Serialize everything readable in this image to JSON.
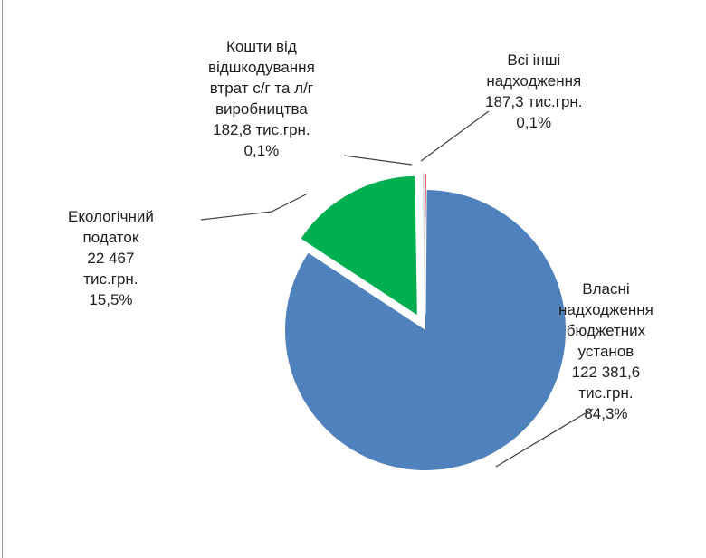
{
  "chart_data": {
    "type": "pie",
    "title": "",
    "slices": [
      {
        "name": "Власні надходження бюджетних установ",
        "value": 122381.6,
        "percent": 84.3,
        "color": "#4f81bd",
        "exploded": false,
        "label_lines": [
          "Власні",
          "надходження",
          "бюджетних",
          "установ",
          "122 381,6",
          "тис.грн.",
          "84,3%"
        ]
      },
      {
        "name": "Екологічний податок",
        "value": 22467,
        "percent": 15.5,
        "color": "#00b050",
        "exploded": true,
        "label_lines": [
          "Екологічний",
          "податок",
          "22 467",
          "тис.грн.",
          "15,5%"
        ]
      },
      {
        "name": "Кошти від відшкодування втрат с/г та л/г виробництва",
        "value": 182.8,
        "percent": 0.1,
        "color": "#f2f2f2",
        "exploded": true,
        "label_lines": [
          "Кошти від",
          "відшкодування",
          "втрат с/г та л/г",
          "виробництва",
          "182,8  тис.грн.",
          "0,1%"
        ]
      },
      {
        "name": "Всі інші надходження",
        "value": 187.3,
        "percent": 0.1,
        "color": "#e02020",
        "exploded": true,
        "label_lines": [
          "Всі інші",
          "надходження",
          "187,3 тис.грн.",
          "0,1%"
        ]
      }
    ],
    "legend": "none",
    "data_labels": "outside with leader lines"
  }
}
